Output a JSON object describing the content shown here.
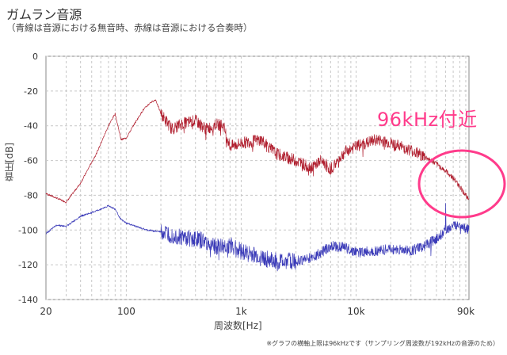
{
  "title": "ガムラン音源",
  "subtitle": "（青線は音源における無音時、赤線は音源における合奏時）",
  "annotation": "96kHz付近",
  "footnote": "※グラフの横軸上限は96kHzです（サンプリング周波数が192kHzの音源のため）",
  "colors": {
    "red_series": "#b01e2e",
    "blue_series": "#3b3bb8",
    "callout": "#ff3b8b",
    "grid": "#c7c7c7"
  },
  "chart_data": {
    "type": "line",
    "title": "",
    "xlabel": "周波数[Hz]",
    "ylabel": "音圧[dB]",
    "x_scale": "log",
    "xlim": [
      20,
      96000
    ],
    "ylim": [
      -140,
      0
    ],
    "x_ticks": [
      {
        "value": 20,
        "label": "20"
      },
      {
        "value": 100,
        "label": "100"
      },
      {
        "value": 1000,
        "label": "1k"
      },
      {
        "value": 10000,
        "label": "10k"
      },
      {
        "value": 90000,
        "label": "90k"
      }
    ],
    "y_ticks": [
      0,
      -20,
      -40,
      -60,
      -80,
      -100,
      -120,
      -140
    ],
    "grid": true,
    "series": [
      {
        "color": "red",
        "points": [
          [
            20,
            -79
          ],
          [
            30,
            -84
          ],
          [
            40,
            -73
          ],
          [
            55,
            -56
          ],
          [
            70,
            -40
          ],
          [
            80,
            -33
          ],
          [
            90,
            -48
          ],
          [
            100,
            -47
          ],
          [
            120,
            -38
          ],
          [
            140,
            -31
          ],
          [
            160,
            -27
          ],
          [
            180,
            -25
          ],
          [
            200,
            -33
          ],
          [
            250,
            -42
          ],
          [
            300,
            -39
          ],
          [
            400,
            -37
          ],
          [
            500,
            -42
          ],
          [
            600,
            -39
          ],
          [
            700,
            -40
          ],
          [
            800,
            -52
          ],
          [
            1000,
            -50
          ],
          [
            1500,
            -48
          ],
          [
            2000,
            -56
          ],
          [
            3000,
            -60
          ],
          [
            4000,
            -64
          ],
          [
            5000,
            -60
          ],
          [
            6000,
            -65
          ],
          [
            8000,
            -55
          ],
          [
            10000,
            -52
          ],
          [
            15000,
            -48
          ],
          [
            20000,
            -50
          ],
          [
            30000,
            -54
          ],
          [
            40000,
            -58
          ],
          [
            50000,
            -62
          ],
          [
            60000,
            -66
          ],
          [
            70000,
            -70
          ],
          [
            80000,
            -75
          ],
          [
            90000,
            -80
          ],
          [
            96000,
            -83
          ]
        ]
      },
      {
        "color": "blue",
        "points": [
          [
            20,
            -102
          ],
          [
            25,
            -97
          ],
          [
            30,
            -98
          ],
          [
            40,
            -92
          ],
          [
            50,
            -90
          ],
          [
            60,
            -88
          ],
          [
            70,
            -86
          ],
          [
            80,
            -88
          ],
          [
            90,
            -94
          ],
          [
            100,
            -96
          ],
          [
            150,
            -100
          ],
          [
            200,
            -101
          ],
          [
            300,
            -104
          ],
          [
            400,
            -105
          ],
          [
            500,
            -107
          ],
          [
            600,
            -110
          ],
          [
            800,
            -109
          ],
          [
            1000,
            -112
          ],
          [
            1500,
            -116
          ],
          [
            2000,
            -118
          ],
          [
            3000,
            -118
          ],
          [
            4000,
            -116
          ],
          [
            5000,
            -113
          ],
          [
            6000,
            -109
          ],
          [
            8000,
            -110
          ],
          [
            10000,
            -113
          ],
          [
            15000,
            -112
          ],
          [
            20000,
            -111
          ],
          [
            30000,
            -112
          ],
          [
            40000,
            -109
          ],
          [
            50000,
            -105
          ],
          [
            60000,
            -100
          ],
          [
            70000,
            -98
          ],
          [
            80000,
            -96
          ],
          [
            90000,
            -99
          ],
          [
            96000,
            -100
          ]
        ]
      }
    ]
  }
}
